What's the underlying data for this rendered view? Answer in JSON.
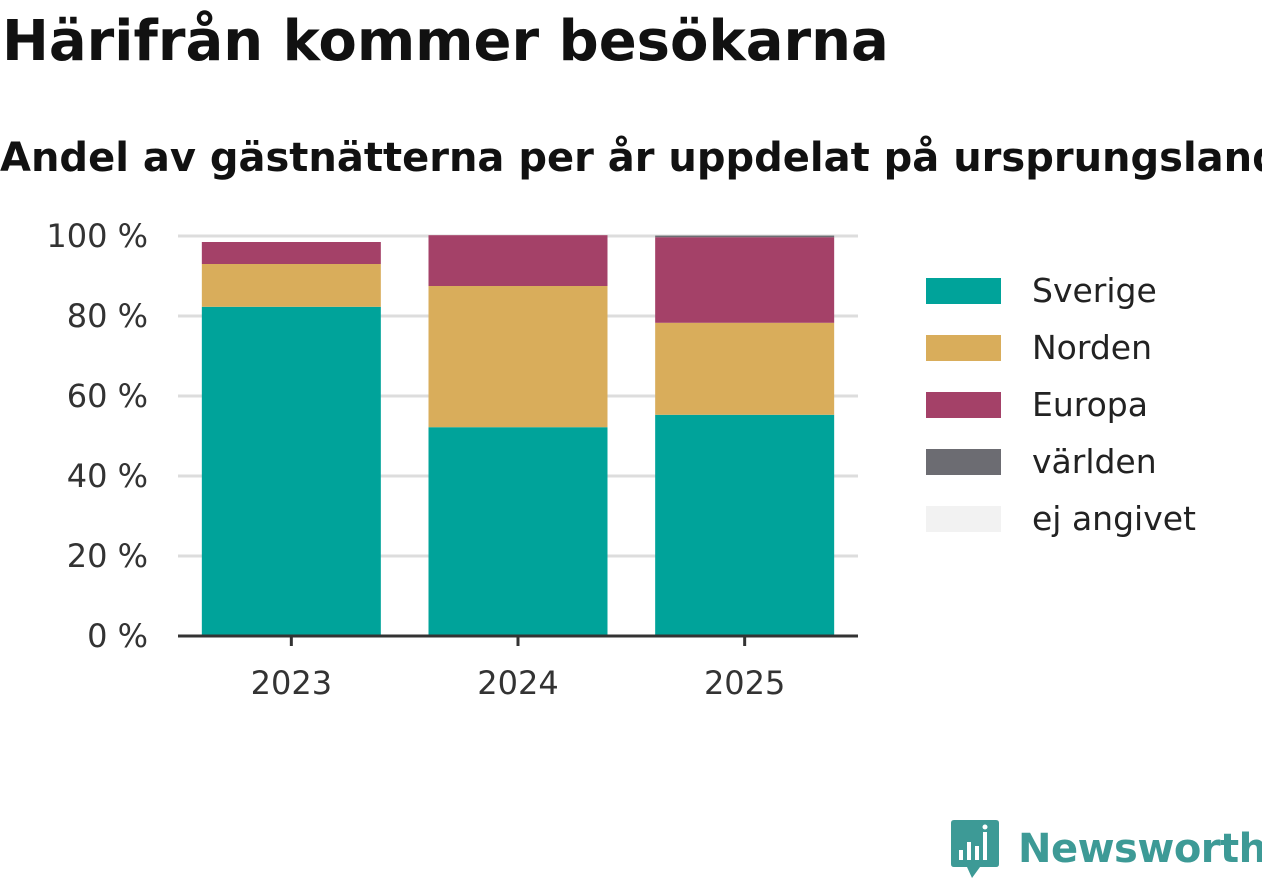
{
  "title": "Härifrån kommer besökarna",
  "subtitle": "Andel av gästnätterna per år uppdelat på ursprungsland",
  "brand": {
    "name": "Newsworthy",
    "icon": "newsworthy-logo-icon",
    "color": "#3d9a96"
  },
  "chart_data": {
    "type": "bar",
    "stacked": true,
    "title": "Härifrån kommer besökarna",
    "subtitle": "Andel av gästnätterna per år uppdelat på ursprungsland",
    "xlabel": "",
    "ylabel": "",
    "categories": [
      "2023",
      "2024",
      "2025"
    ],
    "ylim": [
      0,
      100
    ],
    "yticks": [
      0,
      20,
      40,
      60,
      80,
      100
    ],
    "ytick_labels": [
      "0 %",
      "20 %",
      "40 %",
      "60 %",
      "80 %",
      "100 %"
    ],
    "grid": true,
    "legend_position": "right",
    "series": [
      {
        "name": "Sverige",
        "color": "#00a39a",
        "values": [
          82.3,
          52.2,
          55.3
        ]
      },
      {
        "name": "Norden",
        "color": "#d9ad5b",
        "values": [
          10.7,
          35.3,
          23.0
        ]
      },
      {
        "name": "Europa",
        "color": "#a44168",
        "values": [
          5.5,
          12.7,
          21.4
        ]
      },
      {
        "name": "världen",
        "color": "#6c6c72",
        "values": [
          0.0,
          0.0,
          0.4
        ]
      },
      {
        "name": "ej angivet",
        "color": "#f2f2f2",
        "values": [
          0.0,
          0.0,
          0.0
        ]
      }
    ]
  }
}
